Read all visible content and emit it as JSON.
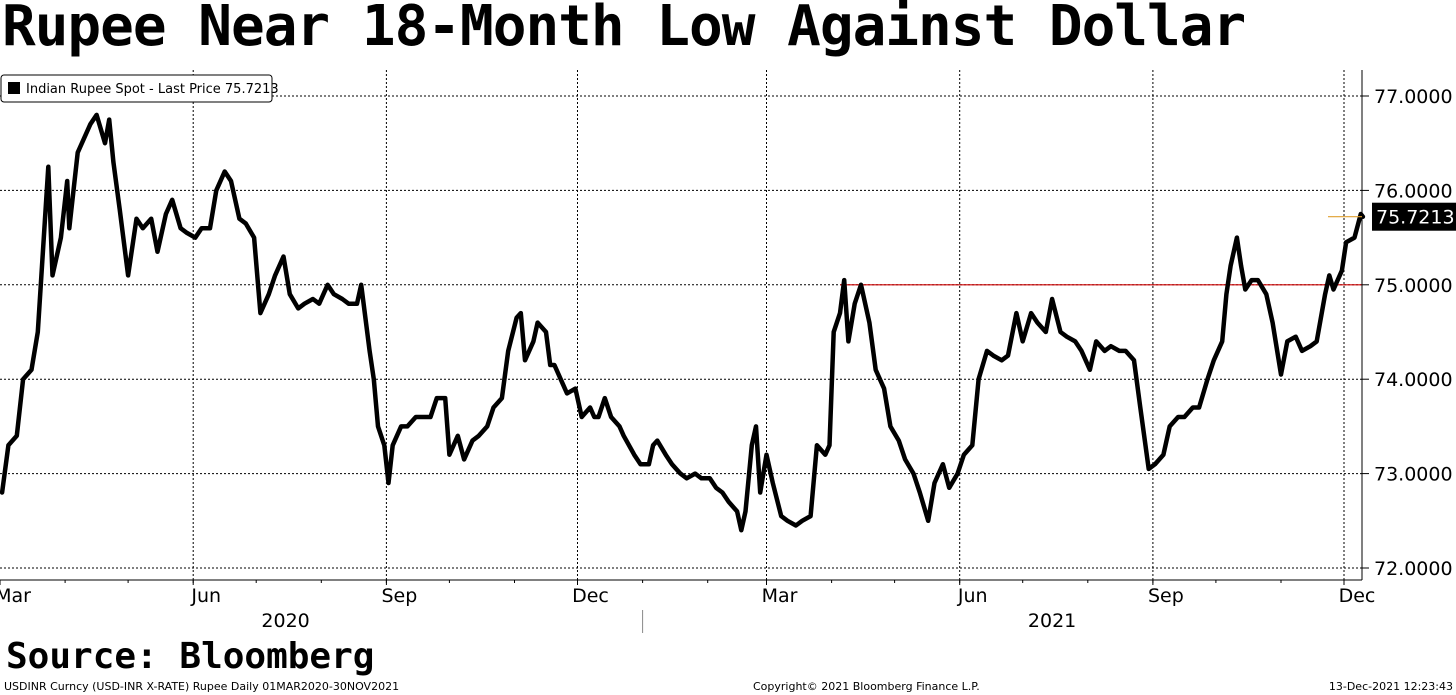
{
  "header": {
    "title": "Rupee Near 18-Month Low Against Dollar"
  },
  "source": "Source: Bloomberg",
  "footer": {
    "left": "USDINR Curncy (USD-INR X-RATE) Rupee  Daily 01MAR2020-30NOV2021",
    "center": "Copyright© 2021 Bloomberg Finance L.P.",
    "right": "13-Dec-2021 12:23:43"
  },
  "colors": {
    "line": "#000000",
    "reference_line": "#cc0000",
    "last_price_marker": "#e0a030",
    "last_price_box": "#000000"
  },
  "chart_data": {
    "type": "line",
    "title": "Rupee Near 18-Month Low Against Dollar",
    "legend": {
      "label": "Indian Rupee Spot - Last Price 75.7213",
      "placement": "top-left"
    },
    "x_range": [
      "2020-03-01",
      "2021-12-10"
    ],
    "ylim": [
      72.0,
      77.0
    ],
    "y_ticks": [
      {
        "value": 77.0,
        "label": "77.0000"
      },
      {
        "value": 76.0,
        "label": "76.0000"
      },
      {
        "value": 75.0,
        "label": "75.0000"
      },
      {
        "value": 74.0,
        "label": "74.0000"
      },
      {
        "value": 73.0,
        "label": "73.0000"
      },
      {
        "value": 72.0,
        "label": "72.0000"
      }
    ],
    "x_ticks": [
      {
        "date": "2020-03-01",
        "label": "Mar"
      },
      {
        "date": "2020-06-01",
        "label": "Jun"
      },
      {
        "date": "2020-09-01",
        "label": "Sep"
      },
      {
        "date": "2020-12-01",
        "label": "Dec"
      },
      {
        "date": "2021-03-01",
        "label": "Mar"
      },
      {
        "date": "2021-06-01",
        "label": "Jun"
      },
      {
        "date": "2021-09-01",
        "label": "Sep"
      },
      {
        "date": "2021-12-01",
        "label": "Dec"
      }
    ],
    "year_labels": [
      {
        "date": "2020-07-15",
        "label": "2020"
      },
      {
        "date": "2021-07-15",
        "label": "2021"
      }
    ],
    "vertical_grid_dates": [
      "2020-03-01",
      "2020-06-01",
      "2020-09-01",
      "2020-12-01",
      "2021-03-01",
      "2021-06-01",
      "2021-09-01",
      "2021-12-01"
    ],
    "year_separator_date": "2021-01-01",
    "reference_line": {
      "value": 75.0,
      "start_date": "2021-04-05"
    },
    "last_price": {
      "value": 75.7213,
      "label": "75.7213"
    },
    "series": [
      {
        "points": [
          [
            "2020-03-02",
            72.8
          ],
          [
            "2020-03-05",
            73.3
          ],
          [
            "2020-03-09",
            73.4
          ],
          [
            "2020-03-12",
            74.0
          ],
          [
            "2020-03-16",
            74.1
          ],
          [
            "2020-03-19",
            74.5
          ],
          [
            "2020-03-23",
            75.9
          ],
          [
            "2020-03-24",
            76.25
          ],
          [
            "2020-03-26",
            75.1
          ],
          [
            "2020-03-30",
            75.5
          ],
          [
            "2020-04-02",
            76.1
          ],
          [
            "2020-04-03",
            75.6
          ],
          [
            "2020-04-07",
            76.4
          ],
          [
            "2020-04-13",
            76.7
          ],
          [
            "2020-04-16",
            76.8
          ],
          [
            "2020-04-20",
            76.5
          ],
          [
            "2020-04-22",
            76.75
          ],
          [
            "2020-04-24",
            76.3
          ],
          [
            "2020-04-27",
            75.8
          ],
          [
            "2020-05-01",
            75.1
          ],
          [
            "2020-05-05",
            75.7
          ],
          [
            "2020-05-08",
            75.6
          ],
          [
            "2020-05-12",
            75.7
          ],
          [
            "2020-05-15",
            75.35
          ],
          [
            "2020-05-19",
            75.75
          ],
          [
            "2020-05-22",
            75.9
          ],
          [
            "2020-05-26",
            75.6
          ],
          [
            "2020-05-29",
            75.55
          ],
          [
            "2020-06-02",
            75.5
          ],
          [
            "2020-06-05",
            75.6
          ],
          [
            "2020-06-09",
            75.6
          ],
          [
            "2020-06-12",
            76.0
          ],
          [
            "2020-06-16",
            76.2
          ],
          [
            "2020-06-19",
            76.1
          ],
          [
            "2020-06-23",
            75.7
          ],
          [
            "2020-06-26",
            75.65
          ],
          [
            "2020-06-30",
            75.5
          ],
          [
            "2020-07-03",
            74.7
          ],
          [
            "2020-07-07",
            74.9
          ],
          [
            "2020-07-10",
            75.1
          ],
          [
            "2020-07-14",
            75.3
          ],
          [
            "2020-07-17",
            74.9
          ],
          [
            "2020-07-21",
            74.75
          ],
          [
            "2020-07-24",
            74.8
          ],
          [
            "2020-07-28",
            74.85
          ],
          [
            "2020-07-31",
            74.8
          ],
          [
            "2020-08-04",
            75.0
          ],
          [
            "2020-08-07",
            74.9
          ],
          [
            "2020-08-11",
            74.85
          ],
          [
            "2020-08-14",
            74.8
          ],
          [
            "2020-08-18",
            74.8
          ],
          [
            "2020-08-20",
            75.0
          ],
          [
            "2020-08-24",
            74.3
          ],
          [
            "2020-08-26",
            74.0
          ],
          [
            "2020-08-28",
            73.5
          ],
          [
            "2020-08-31",
            73.3
          ],
          [
            "2020-09-02",
            72.9
          ],
          [
            "2020-09-04",
            73.3
          ],
          [
            "2020-09-08",
            73.5
          ],
          [
            "2020-09-11",
            73.5
          ],
          [
            "2020-09-15",
            73.6
          ],
          [
            "2020-09-18",
            73.6
          ],
          [
            "2020-09-22",
            73.6
          ],
          [
            "2020-09-25",
            73.8
          ],
          [
            "2020-09-29",
            73.8
          ],
          [
            "2020-10-01",
            73.2
          ],
          [
            "2020-10-05",
            73.4
          ],
          [
            "2020-10-08",
            73.15
          ],
          [
            "2020-10-12",
            73.35
          ],
          [
            "2020-10-15",
            73.4
          ],
          [
            "2020-10-19",
            73.5
          ],
          [
            "2020-10-22",
            73.7
          ],
          [
            "2020-10-26",
            73.8
          ],
          [
            "2020-10-29",
            74.3
          ],
          [
            "2020-11-02",
            74.65
          ],
          [
            "2020-11-04",
            74.7
          ],
          [
            "2020-11-06",
            74.2
          ],
          [
            "2020-11-10",
            74.4
          ],
          [
            "2020-11-12",
            74.6
          ],
          [
            "2020-11-16",
            74.5
          ],
          [
            "2020-11-18",
            74.15
          ],
          [
            "2020-11-20",
            74.15
          ],
          [
            "2020-11-24",
            73.95
          ],
          [
            "2020-11-26",
            73.85
          ],
          [
            "2020-11-30",
            73.9
          ],
          [
            "2020-12-03",
            73.6
          ],
          [
            "2020-12-07",
            73.7
          ],
          [
            "2020-12-09",
            73.6
          ],
          [
            "2020-12-11",
            73.6
          ],
          [
            "2020-12-14",
            73.8
          ],
          [
            "2020-12-17",
            73.6
          ],
          [
            "2020-12-21",
            73.5
          ],
          [
            "2020-12-23",
            73.4
          ],
          [
            "2020-12-28",
            73.2
          ],
          [
            "2020-12-31",
            73.1
          ],
          [
            "2021-01-04",
            73.1
          ],
          [
            "2021-01-06",
            73.3
          ],
          [
            "2021-01-08",
            73.35
          ],
          [
            "2021-01-12",
            73.2
          ],
          [
            "2021-01-15",
            73.1
          ],
          [
            "2021-01-19",
            73.0
          ],
          [
            "2021-01-22",
            72.95
          ],
          [
            "2021-01-26",
            73.0
          ],
          [
            "2021-01-29",
            72.95
          ],
          [
            "2021-02-02",
            72.95
          ],
          [
            "2021-02-05",
            72.85
          ],
          [
            "2021-02-08",
            72.8
          ],
          [
            "2021-02-11",
            72.7
          ],
          [
            "2021-02-15",
            72.6
          ],
          [
            "2021-02-17",
            72.4
          ],
          [
            "2021-02-19",
            72.6
          ],
          [
            "2021-02-22",
            73.3
          ],
          [
            "2021-02-24",
            73.5
          ],
          [
            "2021-02-26",
            72.8
          ],
          [
            "2021-03-01",
            73.2
          ],
          [
            "2021-03-04",
            72.9
          ],
          [
            "2021-03-08",
            72.55
          ],
          [
            "2021-03-11",
            72.5
          ],
          [
            "2021-03-15",
            72.45
          ],
          [
            "2021-03-18",
            72.5
          ],
          [
            "2021-03-22",
            72.55
          ],
          [
            "2021-03-25",
            73.3
          ],
          [
            "2021-03-29",
            73.2
          ],
          [
            "2021-03-31",
            73.3
          ],
          [
            "2021-04-02",
            74.5
          ],
          [
            "2021-04-05",
            74.7
          ],
          [
            "2021-04-07",
            75.05
          ],
          [
            "2021-04-09",
            74.4
          ],
          [
            "2021-04-12",
            74.8
          ],
          [
            "2021-04-15",
            75.0
          ],
          [
            "2021-04-19",
            74.6
          ],
          [
            "2021-04-22",
            74.1
          ],
          [
            "2021-04-26",
            73.9
          ],
          [
            "2021-04-29",
            73.5
          ],
          [
            "2021-05-03",
            73.35
          ],
          [
            "2021-05-06",
            73.15
          ],
          [
            "2021-05-10",
            73.0
          ],
          [
            "2021-05-13",
            72.8
          ],
          [
            "2021-05-17",
            72.5
          ],
          [
            "2021-05-20",
            72.9
          ],
          [
            "2021-05-24",
            73.1
          ],
          [
            "2021-05-27",
            72.85
          ],
          [
            "2021-05-31",
            73.0
          ],
          [
            "2021-06-03",
            73.2
          ],
          [
            "2021-06-07",
            73.3
          ],
          [
            "2021-06-10",
            74.0
          ],
          [
            "2021-06-14",
            74.3
          ],
          [
            "2021-06-17",
            74.25
          ],
          [
            "2021-06-21",
            74.2
          ],
          [
            "2021-06-24",
            74.25
          ],
          [
            "2021-06-28",
            74.7
          ],
          [
            "2021-07-01",
            74.4
          ],
          [
            "2021-07-05",
            74.7
          ],
          [
            "2021-07-08",
            74.6
          ],
          [
            "2021-07-12",
            74.5
          ],
          [
            "2021-07-15",
            74.85
          ],
          [
            "2021-07-19",
            74.5
          ],
          [
            "2021-07-22",
            74.45
          ],
          [
            "2021-07-26",
            74.4
          ],
          [
            "2021-07-29",
            74.3
          ],
          [
            "2021-08-02",
            74.1
          ],
          [
            "2021-08-05",
            74.4
          ],
          [
            "2021-08-09",
            74.3
          ],
          [
            "2021-08-12",
            74.35
          ],
          [
            "2021-08-16",
            74.3
          ],
          [
            "2021-08-19",
            74.3
          ],
          [
            "2021-08-23",
            74.2
          ],
          [
            "2021-08-26",
            73.7
          ],
          [
            "2021-08-30",
            73.05
          ],
          [
            "2021-09-02",
            73.1
          ],
          [
            "2021-09-06",
            73.2
          ],
          [
            "2021-09-09",
            73.5
          ],
          [
            "2021-09-13",
            73.6
          ],
          [
            "2021-09-16",
            73.6
          ],
          [
            "2021-09-20",
            73.7
          ],
          [
            "2021-09-23",
            73.7
          ],
          [
            "2021-09-27",
            74.0
          ],
          [
            "2021-09-30",
            74.2
          ],
          [
            "2021-10-04",
            74.4
          ],
          [
            "2021-10-06",
            74.9
          ],
          [
            "2021-10-08",
            75.2
          ],
          [
            "2021-10-11",
            75.5
          ],
          [
            "2021-10-13",
            75.2
          ],
          [
            "2021-10-15",
            74.95
          ],
          [
            "2021-10-18",
            75.05
          ],
          [
            "2021-10-21",
            75.05
          ],
          [
            "2021-10-25",
            74.9
          ],
          [
            "2021-10-28",
            74.6
          ],
          [
            "2021-11-01",
            74.05
          ],
          [
            "2021-11-04",
            74.4
          ],
          [
            "2021-11-08",
            74.45
          ],
          [
            "2021-11-11",
            74.3
          ],
          [
            "2021-11-15",
            74.35
          ],
          [
            "2021-11-18",
            74.4
          ],
          [
            "2021-11-22",
            74.9
          ],
          [
            "2021-11-24",
            75.1
          ],
          [
            "2021-11-26",
            74.95
          ],
          [
            "2021-11-30",
            75.15
          ],
          [
            "2021-12-02",
            75.45
          ],
          [
            "2021-12-06",
            75.5
          ],
          [
            "2021-12-09",
            75.75
          ],
          [
            "2021-12-10",
            75.7213
          ]
        ]
      }
    ]
  }
}
